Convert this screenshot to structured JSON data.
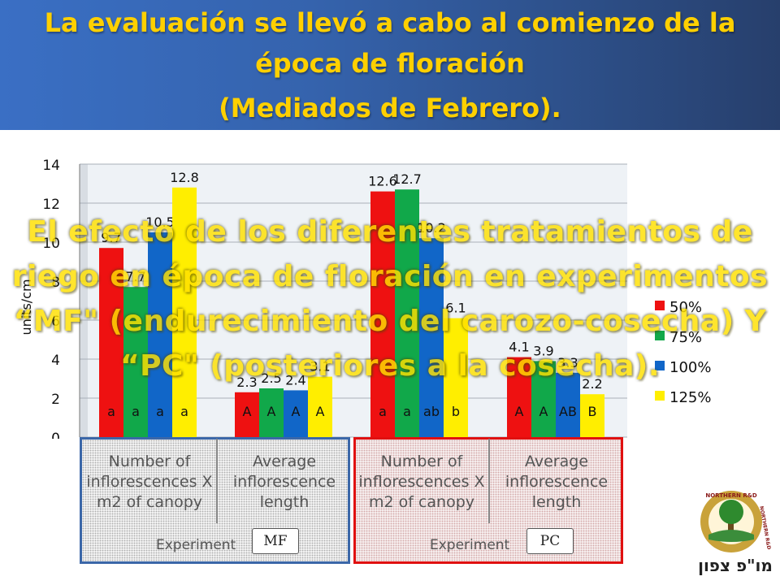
{
  "slide": {
    "title_lines": [
      "La evaluación se llevó a cabo al comienzo de la",
      "época de floración",
      "(Mediados de Febrero)."
    ],
    "overlay_lines": [
      "El efecto de los diferentes tratamientos de",
      "riego en época de floración en experimentos",
      "“MF\" (endurecimiento del carozo-cosecha) Y",
      "“PC\" (posteriores a la cosecha)."
    ],
    "colors": {
      "header_bg": "#3563ad",
      "title_text": "#ffd000",
      "overlay_text": "#ffe000"
    }
  },
  "chart_data": {
    "type": "bar",
    "ylabel": "units/cm",
    "ylim": [
      0,
      14
    ],
    "yticks": [
      "0",
      "2",
      "4",
      "6",
      "8",
      "10",
      "12",
      "14"
    ],
    "grid": true,
    "legend_position": "right",
    "categories": [
      "Number of inflorescences X m2 of canopy",
      "Average inflorescence length",
      "Number of inflorescences X m2 of canopy",
      "Average inflorescence length"
    ],
    "series": [
      {
        "name": "50%",
        "color": "#ee1111",
        "values": [
          9.7,
          2.3,
          12.6,
          4.1
        ],
        "value_labels": [
          "9.7",
          "2.3",
          "12.6",
          "4.1"
        ],
        "letters": [
          "a",
          "A",
          "a",
          "A"
        ]
      },
      {
        "name": "75%",
        "color": "#11a84a",
        "values": [
          7.7,
          2.5,
          12.7,
          3.9
        ],
        "value_labels": [
          "7.7",
          "2.5",
          "12.7",
          "3.9"
        ],
        "letters": [
          "a",
          "A",
          "a",
          "A"
        ]
      },
      {
        "name": "100%",
        "color": "#1166c8",
        "values": [
          10.5,
          2.4,
          10.2,
          3.3
        ],
        "value_labels": [
          "10.5",
          "2.4",
          "10.2",
          "3.3"
        ],
        "letters": [
          "a",
          "A",
          "ab",
          "AB"
        ]
      },
      {
        "name": "125%",
        "color": "#ffee00",
        "values": [
          12.8,
          3.1,
          6.1,
          2.2
        ],
        "value_labels": [
          "12.8",
          "3.1",
          "6.1",
          "2.2"
        ],
        "letters": [
          "a",
          "A",
          "b",
          "B"
        ]
      }
    ],
    "groups": [
      {
        "experiment_label": "Experiment",
        "tag": "MF",
        "labels": [
          "Number of inflorescences X m2 of canopy",
          "Average inflorescence length"
        ]
      },
      {
        "experiment_label": "Experiment",
        "tag": "PC",
        "labels": [
          "Number of inflorescences X m2 of canopy",
          "Average inflorescence length"
        ]
      }
    ]
  },
  "logo": {
    "ring_text_top": "NORTHERN R&D",
    "ring_text_side": "NORTHERN R&D",
    "hebrew_name": "מו\"פ צפון"
  }
}
